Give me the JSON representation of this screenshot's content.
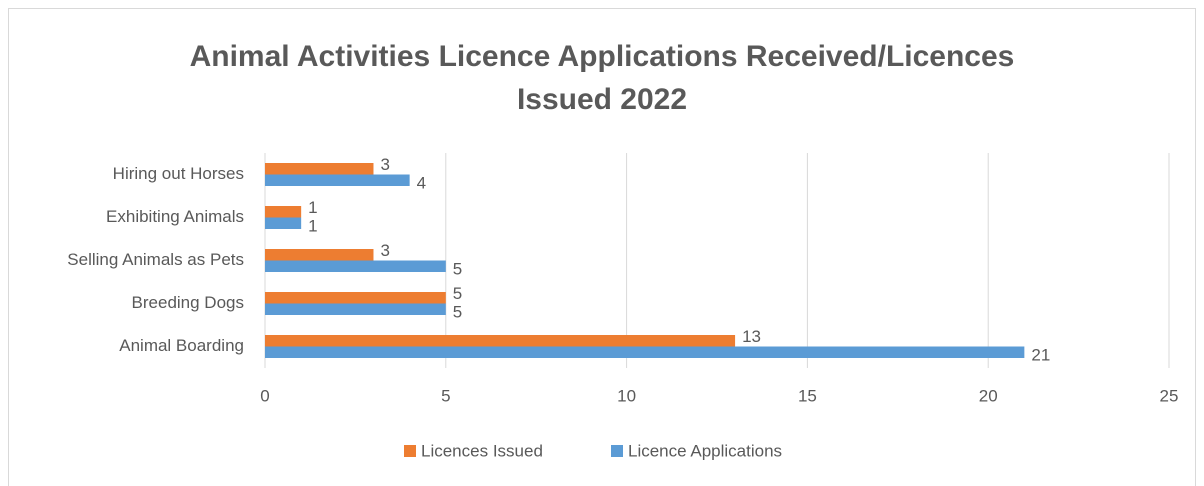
{
  "chart_data": {
    "type": "bar",
    "orientation": "horizontal",
    "title": [
      "Animal Activities Licence Applications Received/Licences",
      "Issued 2022"
    ],
    "categories": [
      "Hiring out Horses",
      "Exhibiting Animals",
      "Selling Animals as Pets",
      "Breeding Dogs",
      "Animal Boarding"
    ],
    "series": [
      {
        "name": "Licences Issued",
        "color": "#ed7d31",
        "values": [
          3,
          1,
          3,
          5,
          13
        ]
      },
      {
        "name": "Licence Applications",
        "color": "#5b9bd5",
        "values": [
          4,
          1,
          5,
          5,
          21
        ]
      }
    ],
    "xlim": [
      0,
      25
    ],
    "xticks": [
      0,
      5,
      10,
      15,
      20,
      25
    ],
    "grid": true,
    "legend": "bottom"
  }
}
